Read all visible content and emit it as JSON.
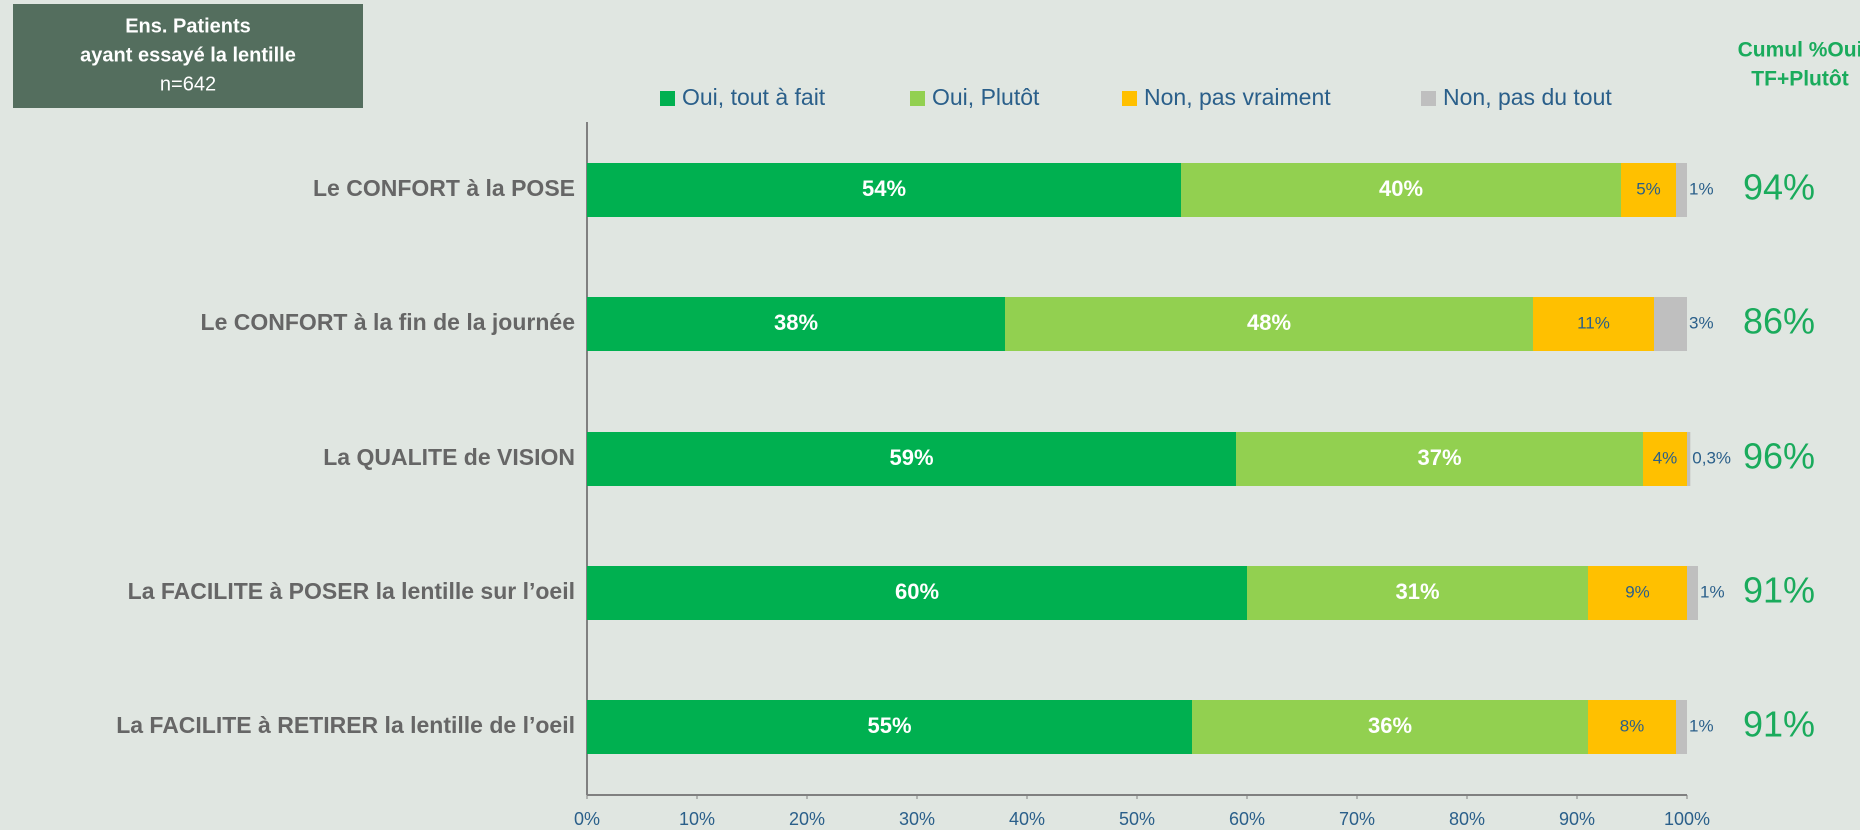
{
  "header": {
    "lines": [
      "Ens. Patients",
      "ayant essayé la lentille",
      "n=642"
    ]
  },
  "cumul": {
    "title_lines": [
      "Cumul %Oui",
      "TF+Plutôt"
    ],
    "values": [
      94,
      86,
      96,
      91,
      91
    ],
    "value_labels": [
      "94%",
      "86%",
      "96%",
      "91%",
      "91%"
    ],
    "color": "#1aab5c"
  },
  "chart_data": {
    "type": "stacked_barh",
    "categories": [
      "Le CONFORT à la POSE",
      "Le CONFORT à la fin de la journée",
      "La QUALITE de VISION",
      "La FACILITE à POSER la lentille sur l’oeil",
      "La FACILITE à RETIRER la lentille de l’oeil"
    ],
    "series": [
      {
        "name": "Oui, tout à fait",
        "color": "#00b050",
        "values": [
          54,
          38,
          59,
          60,
          55
        ],
        "value_labels": [
          "54%",
          "38%",
          "59%",
          "60%",
          "55%"
        ]
      },
      {
        "name": "Oui, Plutôt",
        "color": "#92d050",
        "values": [
          40,
          48,
          37,
          31,
          36
        ],
        "value_labels": [
          "40%",
          "48%",
          "37%",
          "31%",
          "36%"
        ]
      },
      {
        "name": "Non, pas vraiment",
        "color": "#ffc000",
        "values": [
          5,
          11,
          4,
          9,
          8
        ],
        "value_labels": [
          "5%",
          "11%",
          "4%",
          "9%",
          "8%"
        ]
      },
      {
        "name": "Non, pas du tout",
        "color": "#bfbfbf",
        "values": [
          1,
          3,
          0.3,
          1,
          1
        ],
        "value_labels": [
          "1%",
          "3%",
          "0,3%",
          "1%",
          "1%"
        ]
      }
    ],
    "xlim": [
      0,
      100
    ],
    "xticks": [
      {
        "value": 0,
        "label": "0%"
      },
      {
        "value": 10,
        "label": "10%"
      },
      {
        "value": 20,
        "label": "20%"
      },
      {
        "value": 30,
        "label": "30%"
      },
      {
        "value": 40,
        "label": "40%"
      },
      {
        "value": 50,
        "label": "50%"
      },
      {
        "value": 60,
        "label": "60%"
      },
      {
        "value": 70,
        "label": "70%"
      },
      {
        "value": 80,
        "label": "80%"
      },
      {
        "value": 90,
        "label": "90%"
      },
      {
        "value": 100,
        "label": "100%"
      }
    ],
    "legend": "top"
  }
}
